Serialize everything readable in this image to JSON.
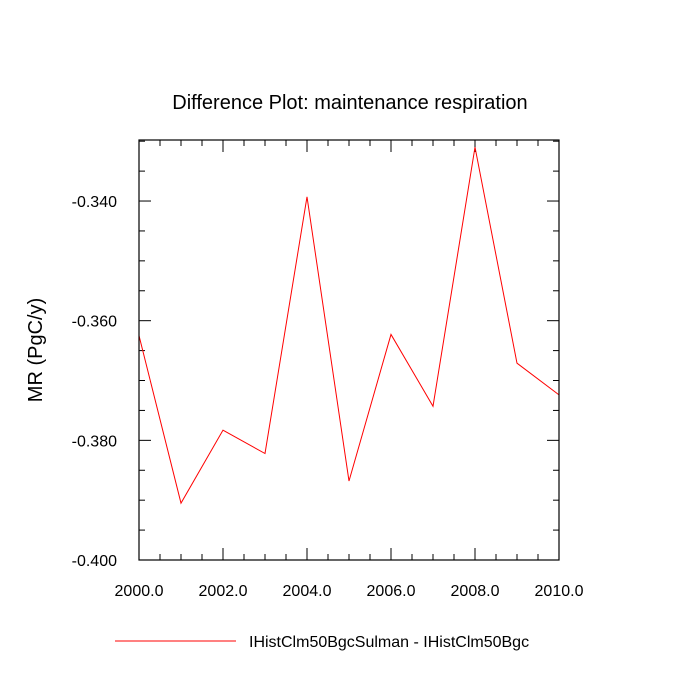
{
  "chart_data": {
    "type": "line",
    "title": "Difference Plot: maintenance respiration",
    "xlabel": "",
    "ylabel": "MR  (PgC/y)",
    "xlim": [
      2000.0,
      2010.0
    ],
    "ylim": [
      -0.4,
      -0.3298
    ],
    "x_major_ticks": [
      2000.0,
      2002.0,
      2004.0,
      2006.0,
      2008.0,
      2010.0
    ],
    "x_tick_labels": [
      "2000.0",
      "2002.0",
      "2004.0",
      "2006.0",
      "2008.0",
      "2010.0"
    ],
    "x_minor_step": 0.5,
    "y_major_ticks": [
      -0.4,
      -0.38,
      -0.36,
      -0.34
    ],
    "y_tick_labels": [
      "-0.400",
      "-0.380",
      "-0.360",
      "-0.340"
    ],
    "y_minor_step": 0.005,
    "grid": false,
    "legend_position": "bottom",
    "series": [
      {
        "name": "IHistClm50BgcSulman - IHistClm50Bgc",
        "color": "#ff0000",
        "x": [
          2000,
          2001,
          2002,
          2003,
          2004,
          2005,
          2006,
          2007,
          2008,
          2009,
          2010
        ],
        "y": [
          -0.3625,
          -0.3905,
          -0.3783,
          -0.3822,
          -0.3393,
          -0.3868,
          -0.3623,
          -0.3743,
          -0.331,
          -0.3671,
          -0.3724
        ]
      }
    ]
  }
}
